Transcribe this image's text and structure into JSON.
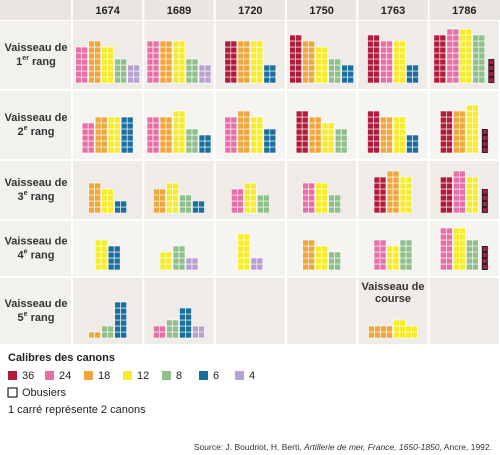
{
  "chart_data": {
    "type": "unit-columns",
    "years": [
      "1674",
      "1689",
      "1720",
      "1750",
      "1763",
      "1786"
    ],
    "calibers": [
      {
        "label": "36",
        "color": "#b31b3c"
      },
      {
        "label": "24",
        "color": "#e86fa6"
      },
      {
        "label": "18",
        "color": "#f0a63a"
      },
      {
        "label": "12",
        "color": "#f7ec2c"
      },
      {
        "label": "8",
        "color": "#8fbf8a"
      },
      {
        "label": "6",
        "color": "#1a6f9e"
      },
      {
        "label": "4",
        "color": "#b9a0d2"
      }
    ],
    "rows": [
      {
        "label": {
          "line1": "Vaisseau de",
          "num": "1",
          "sup": "er",
          "rest": " rang"
        },
        "cells": [
          {
            "values": [
              null,
              12,
              14,
              12,
              8,
              null,
              6
            ]
          },
          {
            "values": [
              null,
              14,
              14,
              14,
              8,
              null,
              6
            ]
          },
          {
            "values": [
              14,
              null,
              14,
              14,
              null,
              6,
              null
            ]
          },
          {
            "values": [
              16,
              null,
              14,
              12,
              8,
              6,
              null
            ]
          },
          {
            "values": [
              16,
              14,
              null,
              14,
              null,
              6,
              null
            ]
          },
          {
            "values": [
              16,
              18,
              null,
              18,
              16,
              null,
              null
            ],
            "obusiers": 4
          }
        ]
      },
      {
        "label": {
          "line1": "Vaisseau de",
          "num": "2",
          "sup": "e",
          "rest": " rang"
        },
        "cells": [
          {
            "values": [
              null,
              10,
              12,
              12,
              null,
              12,
              null
            ]
          },
          {
            "values": [
              null,
              12,
              12,
              14,
              8,
              6,
              null
            ]
          },
          {
            "values": [
              null,
              12,
              14,
              12,
              null,
              8,
              null
            ]
          },
          {
            "values": [
              14,
              null,
              12,
              10,
              8,
              null,
              null
            ]
          },
          {
            "values": [
              14,
              null,
              12,
              12,
              null,
              6,
              null
            ]
          },
          {
            "values": [
              14,
              null,
              14,
              16,
              null,
              null,
              null
            ],
            "obusiers": 4
          }
        ]
      },
      {
        "label": {
          "line1": "Vaisseau de",
          "num": "3",
          "sup": "e",
          "rest": " rang"
        },
        "cells": [
          {
            "values": [
              null,
              null,
              10,
              8,
              null,
              4,
              null
            ]
          },
          {
            "values": [
              null,
              null,
              8,
              10,
              6,
              4,
              null
            ]
          },
          {
            "values": [
              null,
              8,
              null,
              10,
              6,
              null,
              null
            ]
          },
          {
            "values": [
              null,
              10,
              null,
              10,
              6,
              null,
              null
            ]
          },
          {
            "values": [
              12,
              null,
              14,
              12,
              null,
              null,
              null
            ]
          },
          {
            "values": [
              12,
              14,
              null,
              12,
              null,
              null,
              null
            ],
            "obusiers": 4
          }
        ]
      },
      {
        "label": {
          "line1": "Vaisseau de",
          "num": "4",
          "sup": "e",
          "rest": " rang"
        },
        "cells": [
          {
            "values": [
              null,
              null,
              null,
              10,
              null,
              8,
              null
            ]
          },
          {
            "values": [
              null,
              null,
              null,
              6,
              8,
              null,
              4
            ]
          },
          {
            "values": [
              null,
              null,
              null,
              12,
              null,
              null,
              4
            ]
          },
          {
            "values": [
              null,
              null,
              10,
              8,
              6,
              null,
              null
            ]
          },
          {
            "values": [
              null,
              10,
              null,
              8,
              10,
              null,
              null
            ]
          },
          {
            "values": [
              null,
              14,
              null,
              14,
              10,
              null,
              null
            ],
            "obusiers": 4
          }
        ]
      },
      {
        "label": {
          "line1": "Vaisseau de",
          "num": "5",
          "sup": "e",
          "rest": " rang"
        },
        "cells": [
          {
            "values": [
              null,
              null,
              2,
              null,
              4,
              12,
              null
            ]
          },
          {
            "values": [
              null,
              4,
              null,
              null,
              6,
              10,
              4
            ]
          },
          null,
          null,
          {
            "label": [
              "Vaisseau de",
              "course"
            ],
            "values": [
              null,
              null,
              8,
              10,
              null,
              null,
              null
            ]
          },
          null
        ]
      }
    ],
    "legend_title": "Calibres des canons",
    "obusiers_label": "Obusiers",
    "note": "1 carré représente 2 canons",
    "source": {
      "before": "Source: J. Boudriot, H. Berti, ",
      "italic": "Artillerie de mer, France, 1650-1850",
      "after": ", Ancre, 1992."
    }
  }
}
